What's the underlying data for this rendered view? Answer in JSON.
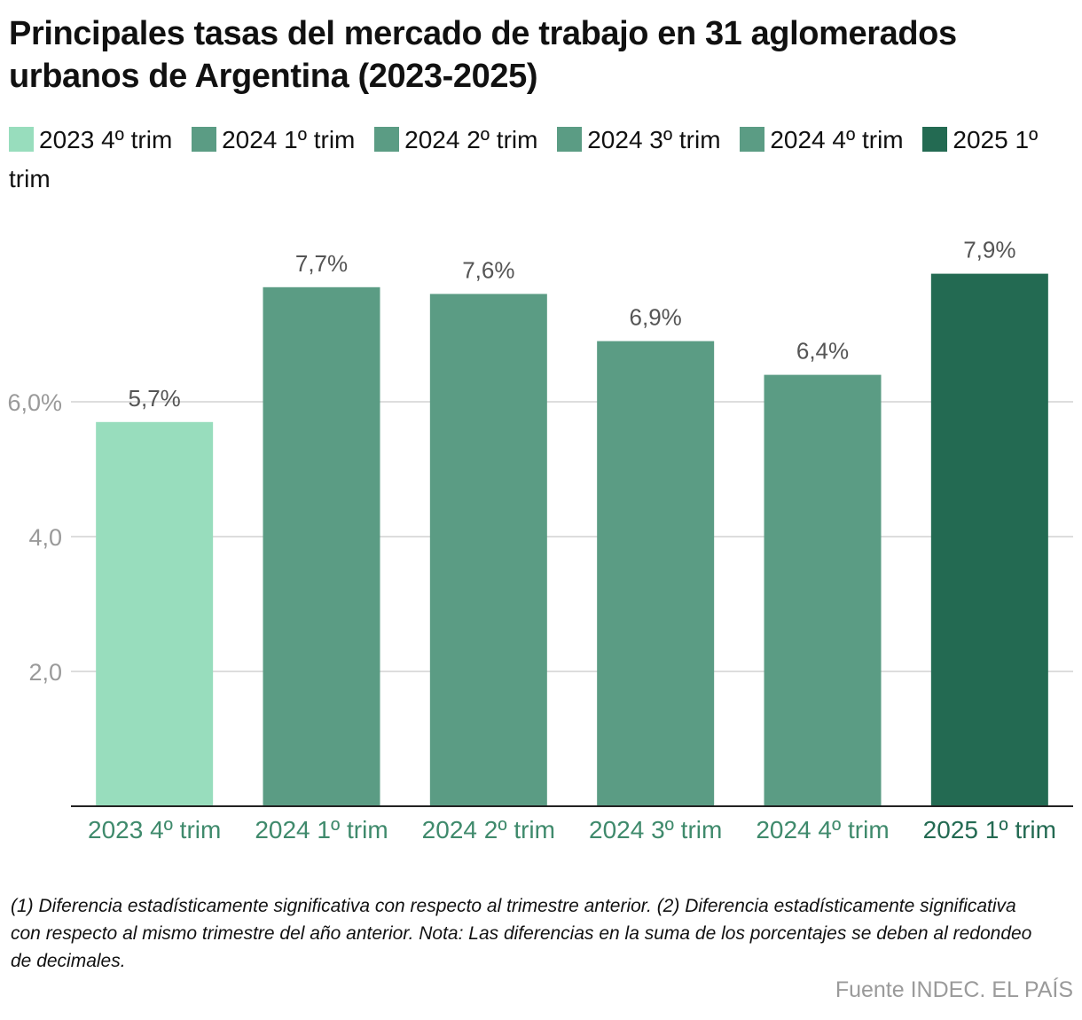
{
  "title": "Principales tasas del mercado de trabajo en 31 aglomerados urbanos de Argentina (2023-2025)",
  "colors": {
    "light": "#98ddbd",
    "medium": "#5b9c84",
    "dark": "#236a52",
    "tick_label": "#9a9a9a",
    "value_label": "#555555",
    "category_label": "#3f8a6c",
    "category_label_last": "#236a52",
    "grid": "#dddddd",
    "axis": "#222222"
  },
  "legend": [
    {
      "label": "2023 4º trim",
      "color": "#98ddbd"
    },
    {
      "label": "2024 1º trim",
      "color": "#5b9c84"
    },
    {
      "label": "2024 2º trim",
      "color": "#5b9c84"
    },
    {
      "label": "2024 3º trim",
      "color": "#5b9c84"
    },
    {
      "label": "2024 4º trim",
      "color": "#5b9c84"
    },
    {
      "label": "2025 1º trim",
      "color": "#236a52"
    }
  ],
  "chart_data": {
    "type": "bar",
    "title": "Principales tasas del mercado de trabajo en 31 aglomerados urbanos de Argentina (2023-2025)",
    "categories": [
      "2023 4º trim",
      "2024 1º trim",
      "2024 2º trim",
      "2024 3º trim",
      "2024 4º trim",
      "2025 1º trim"
    ],
    "values": [
      5.7,
      7.7,
      7.6,
      6.9,
      6.4,
      7.9
    ],
    "value_labels": [
      "5,7%",
      "7,7%",
      "7,6%",
      "6,9%",
      "6,4%",
      "7,9%"
    ],
    "bar_colors": [
      "#98ddbd",
      "#5b9c84",
      "#5b9c84",
      "#5b9c84",
      "#5b9c84",
      "#236a52"
    ],
    "yticks": [
      2,
      4,
      6
    ],
    "ytick_labels": [
      "2,0",
      "4,0",
      "6,0%"
    ],
    "ylim": [
      0,
      8.6
    ],
    "grid": true,
    "legend_position": "top",
    "xlabel": "",
    "ylabel": ""
  },
  "footnote": "(1) Diferencia estadísticamente significativa con respecto al trimestre anterior. (2) Diferencia estadísticamente significativa con respecto al mismo trimestre del año anterior. Nota: Las diferencias en la suma de los porcentajes se deben al redondeo de decimales.",
  "source": "Fuente INDEC. EL PAÍS"
}
